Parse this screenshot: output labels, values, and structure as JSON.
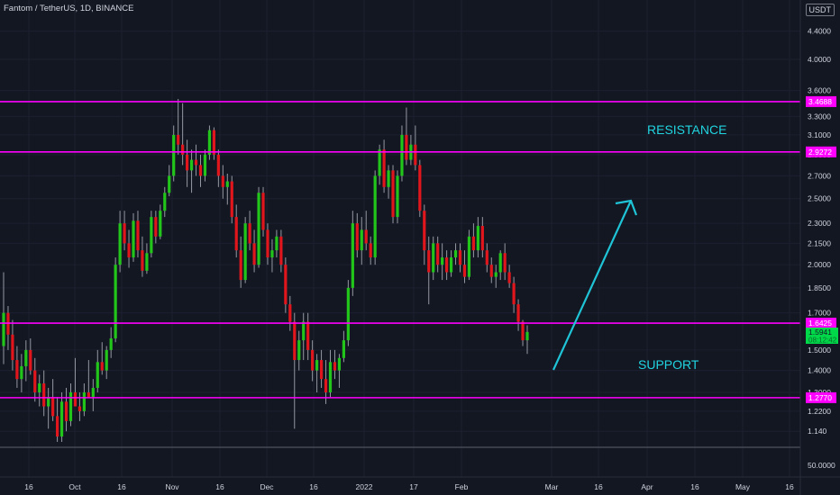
{
  "header": {
    "title": "Fantom / TetherUS, 1D, BINANCE",
    "currency_button": "USDT"
  },
  "colors": {
    "background": "#131722",
    "up": "#22c51a",
    "down": "#e0161c",
    "wick": "#9598a1",
    "level": "#ff00ff",
    "arrow": "#1fc4d6",
    "annotation": "#20d4e0",
    "axis_text": "#d1d4dc",
    "last_price_bg": "#00d84a"
  },
  "chart_data": {
    "type": "candlestick",
    "symbol": "Fantom / TetherUS, 1D, BINANCE",
    "y_scale": "log",
    "y_ticks": [
      "4.4000",
      "4.0000",
      "3.6000",
      "3.3000",
      "3.1000",
      "2.9000",
      "2.7000",
      "2.5000",
      "2.3000",
      "2.1500",
      "2.0000",
      "1.8500",
      "1.7000",
      "1.5000",
      "1.4000",
      "1.3000",
      "1.2200",
      "1.140"
    ],
    "x_ticks": [
      "16",
      "Oct",
      "16",
      "Nov",
      "16",
      "Dec",
      "16",
      "2022",
      "17",
      "Feb",
      "Mar",
      "16",
      "Apr",
      "16",
      "May",
      "16"
    ],
    "volume_axis_label": "50.0000",
    "levels": [
      {
        "label": "3.4688",
        "value": 3.4688,
        "role": "resistance"
      },
      {
        "label": "2.9272",
        "value": 2.9272,
        "role": "resistance"
      },
      {
        "label": "1.6425",
        "value": 1.6425,
        "role": "support"
      },
      {
        "label": "1.2770",
        "value": 1.277,
        "role": "support"
      }
    ],
    "last_price": {
      "value": "1.5941",
      "countdown": "08:12:42"
    },
    "annotations": {
      "resistance": "RESISTANCE",
      "support": "SUPPORT"
    },
    "ohlc": [
      [
        1.52,
        1.95,
        1.43,
        1.7
      ],
      [
        1.7,
        1.74,
        1.5,
        1.58
      ],
      [
        1.58,
        1.66,
        1.4,
        1.45
      ],
      [
        1.45,
        1.52,
        1.32,
        1.36
      ],
      [
        1.36,
        1.48,
        1.3,
        1.42
      ],
      [
        1.42,
        1.55,
        1.35,
        1.5
      ],
      [
        1.5,
        1.56,
        1.38,
        1.4
      ],
      [
        1.4,
        1.46,
        1.26,
        1.3
      ],
      [
        1.3,
        1.38,
        1.24,
        1.34
      ],
      [
        1.34,
        1.4,
        1.2,
        1.24
      ],
      [
        1.24,
        1.32,
        1.15,
        1.28
      ],
      [
        1.28,
        1.36,
        1.18,
        1.2
      ],
      [
        1.2,
        1.28,
        1.1,
        1.12
      ],
      [
        1.12,
        1.3,
        1.1,
        1.26
      ],
      [
        1.26,
        1.32,
        1.14,
        1.18
      ],
      [
        1.18,
        1.34,
        1.16,
        1.3
      ],
      [
        1.3,
        1.46,
        1.26,
        1.24
      ],
      [
        1.24,
        1.3,
        1.18,
        1.22
      ],
      [
        1.22,
        1.34,
        1.2,
        1.3
      ],
      [
        1.3,
        1.45,
        1.28,
        1.28
      ],
      [
        1.28,
        1.36,
        1.22,
        1.32
      ],
      [
        1.32,
        1.5,
        1.3,
        1.44
      ],
      [
        1.44,
        1.54,
        1.38,
        1.4
      ],
      [
        1.4,
        1.52,
        1.36,
        1.5
      ],
      [
        1.5,
        1.62,
        1.46,
        1.56
      ],
      [
        1.56,
        2.05,
        1.54,
        2.0
      ],
      [
        2.0,
        2.4,
        1.95,
        2.3
      ],
      [
        2.3,
        2.4,
        2.1,
        2.15
      ],
      [
        2.15,
        2.25,
        1.98,
        2.05
      ],
      [
        2.05,
        2.38,
        2.02,
        2.32
      ],
      [
        2.32,
        2.4,
        2.05,
        2.1
      ],
      [
        2.1,
        2.2,
        1.92,
        1.96
      ],
      [
        1.96,
        2.15,
        1.94,
        2.08
      ],
      [
        2.08,
        2.4,
        2.05,
        2.35
      ],
      [
        2.35,
        2.4,
        2.15,
        2.2
      ],
      [
        2.2,
        2.45,
        2.18,
        2.4
      ],
      [
        2.4,
        2.6,
        2.35,
        2.55
      ],
      [
        2.55,
        2.8,
        2.52,
        2.7
      ],
      [
        2.7,
        3.2,
        2.65,
        3.1
      ],
      [
        3.1,
        3.5,
        2.9,
        3.0
      ],
      [
        3.0,
        3.45,
        2.8,
        2.9
      ],
      [
        2.9,
        3.05,
        2.6,
        2.75
      ],
      [
        2.75,
        2.95,
        2.55,
        2.85
      ],
      [
        2.85,
        3.0,
        2.7,
        2.8
      ],
      [
        2.8,
        2.9,
        2.6,
        2.7
      ],
      [
        2.7,
        2.95,
        2.65,
        2.9
      ],
      [
        2.9,
        3.2,
        2.85,
        3.15
      ],
      [
        3.15,
        3.18,
        2.85,
        2.9
      ],
      [
        2.9,
        2.95,
        2.6,
        2.7
      ],
      [
        2.7,
        2.8,
        2.5,
        2.6
      ],
      [
        2.6,
        2.72,
        2.45,
        2.65
      ],
      [
        2.65,
        2.7,
        2.3,
        2.35
      ],
      [
        2.35,
        2.45,
        2.05,
        2.1
      ],
      [
        2.1,
        2.2,
        1.85,
        1.9
      ],
      [
        1.9,
        2.35,
        1.88,
        2.3
      ],
      [
        2.3,
        2.4,
        2.1,
        2.15
      ],
      [
        2.15,
        2.25,
        1.95,
        2.0
      ],
      [
        2.0,
        2.6,
        1.98,
        2.55
      ],
      [
        2.55,
        2.6,
        2.2,
        2.25
      ],
      [
        2.25,
        2.3,
        2.0,
        2.05
      ],
      [
        2.05,
        2.18,
        1.95,
        2.1
      ],
      [
        2.1,
        2.25,
        2.05,
        2.2
      ],
      [
        2.2,
        2.25,
        1.95,
        2.0
      ],
      [
        2.0,
        2.05,
        1.7,
        1.75
      ],
      [
        1.75,
        1.8,
        1.6,
        1.65
      ],
      [
        1.65,
        1.7,
        1.15,
        1.45
      ],
      [
        1.45,
        1.6,
        1.4,
        1.55
      ],
      [
        1.55,
        1.7,
        1.45,
        1.65
      ],
      [
        1.65,
        1.7,
        1.45,
        1.5
      ],
      [
        1.5,
        1.55,
        1.35,
        1.4
      ],
      [
        1.4,
        1.48,
        1.3,
        1.45
      ],
      [
        1.45,
        1.5,
        1.32,
        1.36
      ],
      [
        1.36,
        1.45,
        1.25,
        1.3
      ],
      [
        1.3,
        1.5,
        1.28,
        1.44
      ],
      [
        1.44,
        1.5,
        1.36,
        1.4
      ],
      [
        1.4,
        1.48,
        1.32,
        1.46
      ],
      [
        1.46,
        1.6,
        1.44,
        1.55
      ],
      [
        1.55,
        1.9,
        1.52,
        1.85
      ],
      [
        1.85,
        2.4,
        1.8,
        2.3
      ],
      [
        2.3,
        2.38,
        2.05,
        2.1
      ],
      [
        2.1,
        2.35,
        2.0,
        2.25
      ],
      [
        2.25,
        2.4,
        2.1,
        2.15
      ],
      [
        2.15,
        2.2,
        2.0,
        2.05
      ],
      [
        2.05,
        2.75,
        2.0,
        2.7
      ],
      [
        2.7,
        3.0,
        2.62,
        2.95
      ],
      [
        2.95,
        3.05,
        2.55,
        2.6
      ],
      [
        2.6,
        2.8,
        2.5,
        2.75
      ],
      [
        2.75,
        2.8,
        2.3,
        2.35
      ],
      [
        2.35,
        2.75,
        2.3,
        2.7
      ],
      [
        2.7,
        3.2,
        2.65,
        3.1
      ],
      [
        3.1,
        3.4,
        2.8,
        2.85
      ],
      [
        2.85,
        3.1,
        2.8,
        3.0
      ],
      [
        3.0,
        3.2,
        2.75,
        2.8
      ],
      [
        2.8,
        2.85,
        2.35,
        2.4
      ],
      [
        2.4,
        2.45,
        2.0,
        2.1
      ],
      [
        2.1,
        2.2,
        1.75,
        1.95
      ],
      [
        1.95,
        2.2,
        1.9,
        2.15
      ],
      [
        2.15,
        2.2,
        1.95,
        2.0
      ],
      [
        2.0,
        2.15,
        1.9,
        2.05
      ],
      [
        2.05,
        2.1,
        1.9,
        1.95
      ],
      [
        1.95,
        2.1,
        1.92,
        2.05
      ],
      [
        2.05,
        2.15,
        2.0,
        2.1
      ],
      [
        2.1,
        2.15,
        1.95,
        2.0
      ],
      [
        2.0,
        2.1,
        1.88,
        1.92
      ],
      [
        1.92,
        2.25,
        1.9,
        2.2
      ],
      [
        2.2,
        2.3,
        2.05,
        2.1
      ],
      [
        2.1,
        2.35,
        2.05,
        2.28
      ],
      [
        2.28,
        2.35,
        2.05,
        2.1
      ],
      [
        2.1,
        2.15,
        1.95,
        2.0
      ],
      [
        2.0,
        2.05,
        1.88,
        1.92
      ],
      [
        1.92,
        2.0,
        1.85,
        1.95
      ],
      [
        1.95,
        2.1,
        1.9,
        2.08
      ],
      [
        2.08,
        2.15,
        1.9,
        1.95
      ],
      [
        1.95,
        2.0,
        1.85,
        1.88
      ],
      [
        1.88,
        1.92,
        1.7,
        1.75
      ],
      [
        1.75,
        1.78,
        1.6,
        1.65
      ],
      [
        1.65,
        1.66,
        1.52,
        1.55
      ],
      [
        1.55,
        1.63,
        1.48,
        1.5941
      ]
    ]
  }
}
